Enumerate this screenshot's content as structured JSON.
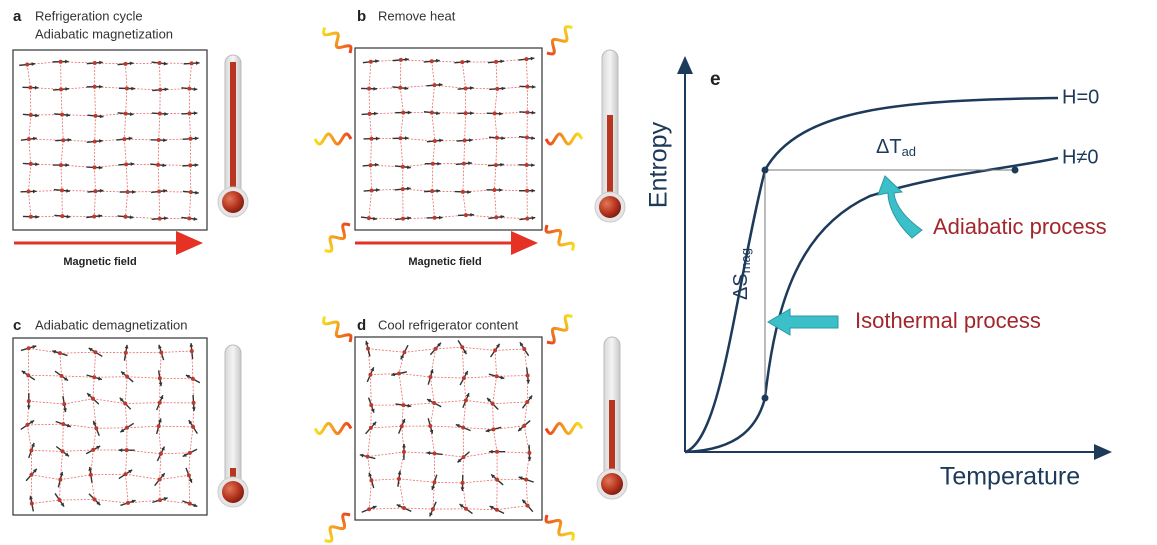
{
  "panels": [
    {
      "letter": "a",
      "title": [
        "Refrigeration cycle",
        "Adiabatic magnetization"
      ],
      "field_label": "Magnetic field"
    },
    {
      "letter": "b",
      "title": [
        "Remove heat"
      ],
      "field_label": "Magnetic field"
    },
    {
      "letter": "c",
      "title": [
        "Adiabatic demagnetization"
      ]
    },
    {
      "letter": "d",
      "title": [
        "Cool refrigerator content"
      ]
    }
  ],
  "plot": {
    "letter": "e",
    "y_label": "Entropy",
    "x_label": "Temperature",
    "curves": [
      "H=0",
      "H≠0"
    ],
    "delta_t": "ΔT",
    "delta_t_sub": "ad",
    "delta_s": "ΔS",
    "delta_s_sub": "mag",
    "annotations": [
      "Adiabatic process",
      "Isothermal process"
    ]
  }
}
